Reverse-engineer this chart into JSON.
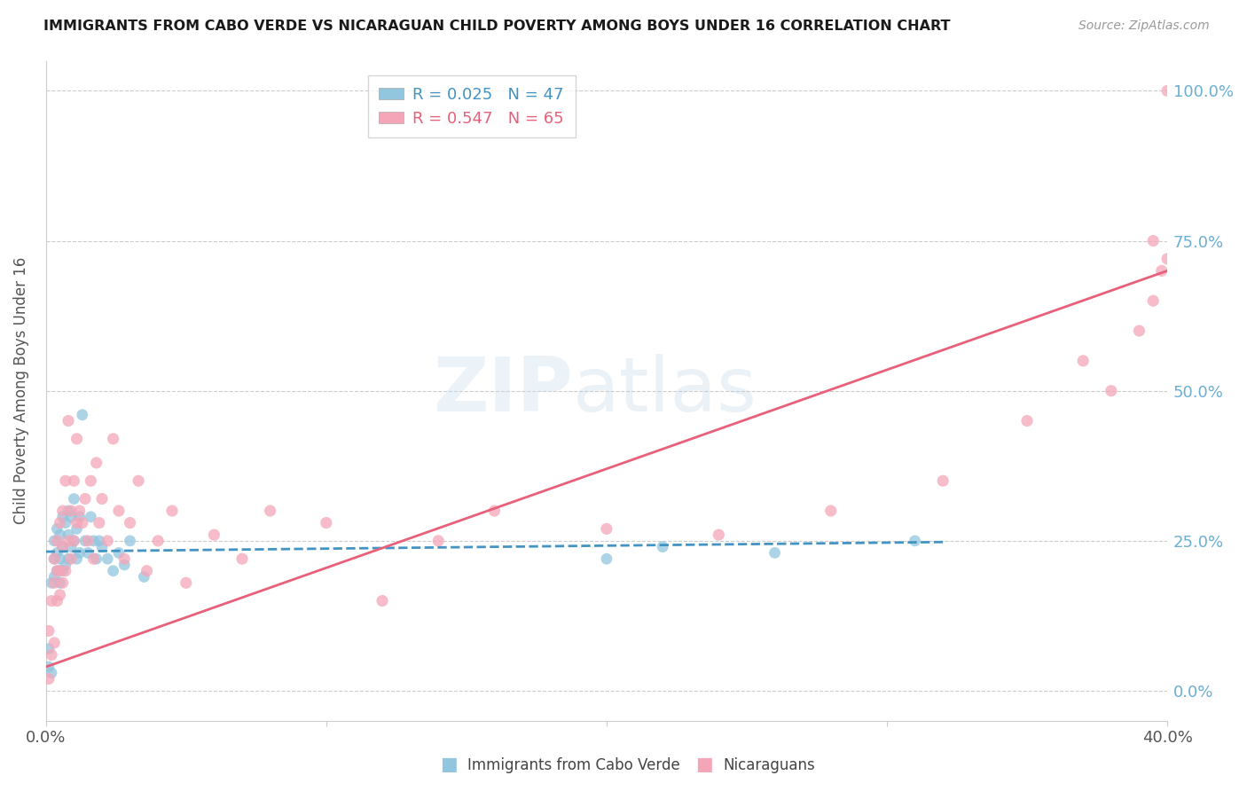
{
  "title": "IMMIGRANTS FROM CABO VERDE VS NICARAGUAN CHILD POVERTY AMONG BOYS UNDER 16 CORRELATION CHART",
  "source": "Source: ZipAtlas.com",
  "ylabel": "Child Poverty Among Boys Under 16",
  "xlim": [
    0.0,
    0.4
  ],
  "ylim": [
    -0.05,
    1.05
  ],
  "yticks": [
    0.0,
    0.25,
    0.5,
    0.75,
    1.0
  ],
  "ytick_labels": [
    "0.0%",
    "25.0%",
    "50.0%",
    "75.0%",
    "100.0%"
  ],
  "xticks": [
    0.0,
    0.1,
    0.2,
    0.3,
    0.4
  ],
  "xtick_labels": [
    "0.0%",
    "",
    "",
    "",
    "40.0%"
  ],
  "blue_color": "#92c5de",
  "pink_color": "#f4a6b8",
  "blue_line_color": "#4393c3",
  "pink_line_color": "#e8607a",
  "legend_R1": "R = 0.025",
  "legend_N1": "N = 47",
  "legend_R2": "R = 0.547",
  "legend_N2": "N = 65",
  "watermark_zip": "ZIP",
  "watermark_atlas": "atlas",
  "cabo_verde_x": [
    0.001,
    0.001,
    0.002,
    0.002,
    0.003,
    0.003,
    0.003,
    0.004,
    0.004,
    0.004,
    0.005,
    0.005,
    0.005,
    0.006,
    0.006,
    0.006,
    0.007,
    0.007,
    0.008,
    0.008,
    0.008,
    0.009,
    0.009,
    0.01,
    0.01,
    0.011,
    0.011,
    0.012,
    0.012,
    0.013,
    0.014,
    0.015,
    0.016,
    0.017,
    0.018,
    0.019,
    0.02,
    0.022,
    0.024,
    0.026,
    0.028,
    0.03,
    0.035,
    0.2,
    0.22,
    0.26,
    0.31
  ],
  "cabo_verde_y": [
    0.04,
    0.07,
    0.03,
    0.18,
    0.22,
    0.25,
    0.19,
    0.2,
    0.23,
    0.27,
    0.18,
    0.22,
    0.26,
    0.2,
    0.24,
    0.29,
    0.21,
    0.28,
    0.22,
    0.26,
    0.3,
    0.24,
    0.29,
    0.25,
    0.32,
    0.22,
    0.27,
    0.23,
    0.29,
    0.46,
    0.25,
    0.23,
    0.29,
    0.25,
    0.22,
    0.25,
    0.24,
    0.22,
    0.2,
    0.23,
    0.21,
    0.25,
    0.19,
    0.22,
    0.24,
    0.23,
    0.25
  ],
  "nicaraguan_x": [
    0.001,
    0.001,
    0.002,
    0.002,
    0.003,
    0.003,
    0.003,
    0.004,
    0.004,
    0.004,
    0.005,
    0.005,
    0.005,
    0.006,
    0.006,
    0.006,
    0.007,
    0.007,
    0.008,
    0.008,
    0.009,
    0.009,
    0.01,
    0.01,
    0.011,
    0.011,
    0.012,
    0.013,
    0.014,
    0.015,
    0.016,
    0.017,
    0.018,
    0.019,
    0.02,
    0.022,
    0.024,
    0.026,
    0.028,
    0.03,
    0.033,
    0.036,
    0.04,
    0.045,
    0.05,
    0.06,
    0.07,
    0.08,
    0.1,
    0.12,
    0.14,
    0.16,
    0.2,
    0.24,
    0.28,
    0.32,
    0.35,
    0.37,
    0.38,
    0.39,
    0.395,
    0.398,
    0.4,
    0.395,
    0.4
  ],
  "nicaraguan_y": [
    0.02,
    0.1,
    0.06,
    0.15,
    0.08,
    0.18,
    0.22,
    0.15,
    0.2,
    0.25,
    0.16,
    0.2,
    0.28,
    0.18,
    0.24,
    0.3,
    0.2,
    0.35,
    0.25,
    0.45,
    0.22,
    0.3,
    0.25,
    0.35,
    0.28,
    0.42,
    0.3,
    0.28,
    0.32,
    0.25,
    0.35,
    0.22,
    0.38,
    0.28,
    0.32,
    0.25,
    0.42,
    0.3,
    0.22,
    0.28,
    0.35,
    0.2,
    0.25,
    0.3,
    0.18,
    0.26,
    0.22,
    0.3,
    0.28,
    0.15,
    0.25,
    0.3,
    0.27,
    0.26,
    0.3,
    0.35,
    0.45,
    0.55,
    0.5,
    0.6,
    0.65,
    0.7,
    0.72,
    0.75,
    1.0
  ],
  "blue_line_x": [
    0.0,
    0.32
  ],
  "blue_line_y": [
    0.232,
    0.248
  ],
  "pink_line_x": [
    0.0,
    0.4
  ],
  "pink_line_y": [
    0.04,
    0.7
  ]
}
